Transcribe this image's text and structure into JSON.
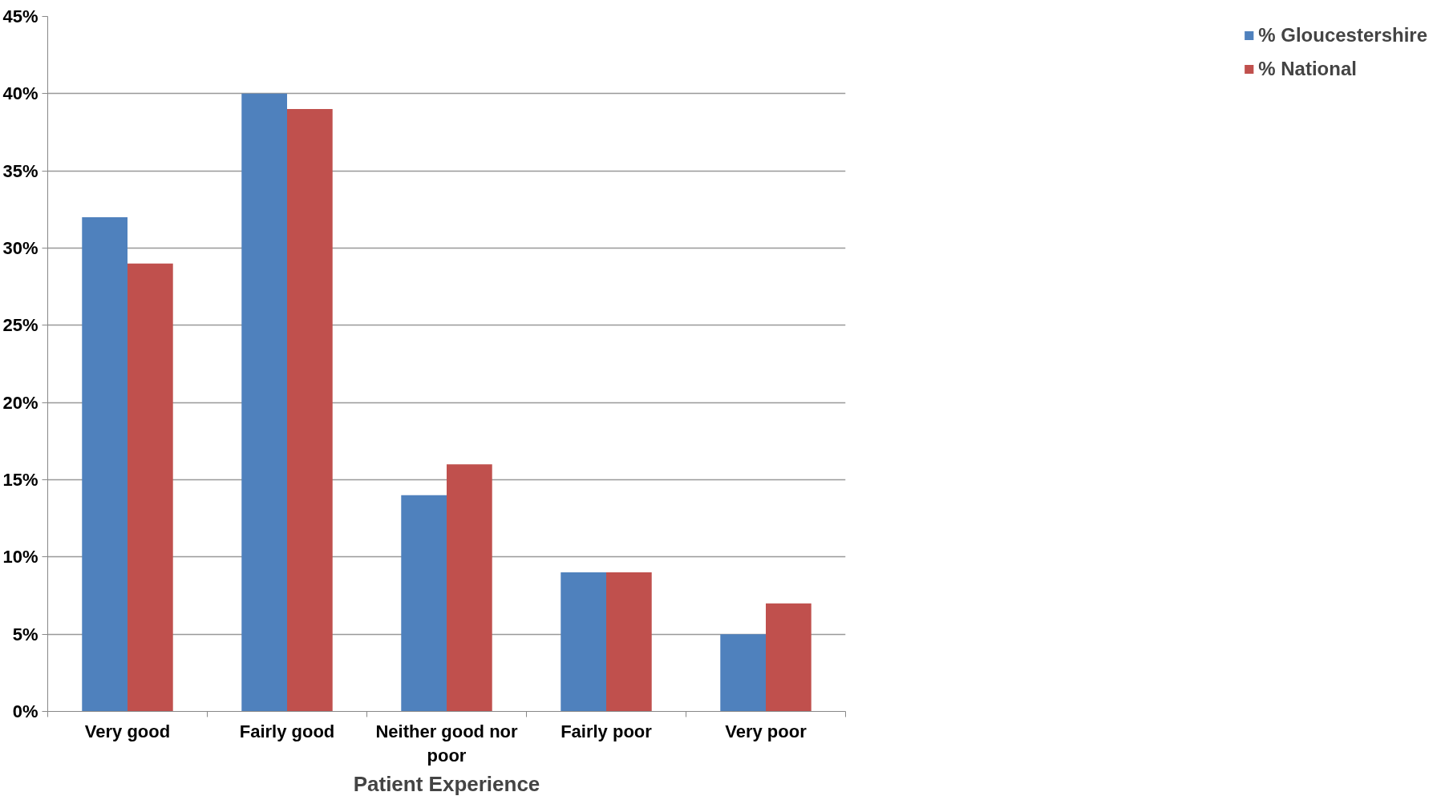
{
  "chart_data": {
    "type": "bar",
    "xlabel": "Patient Experience",
    "categories": [
      "Very good",
      "Fairly good",
      "Neither good nor poor",
      "Fairly poor",
      "Very poor"
    ],
    "series": [
      {
        "name": "% Gloucestershire",
        "color": "#4f81bd",
        "values": [
          32,
          40,
          14,
          9,
          5
        ]
      },
      {
        "name": "% National",
        "color": "#c0504d",
        "values": [
          29,
          39,
          16,
          9,
          7
        ]
      }
    ],
    "ylim": [
      0,
      45
    ],
    "yticks": [
      {
        "value": 0,
        "label": "0%"
      },
      {
        "value": 5,
        "label": "5%"
      },
      {
        "value": 10,
        "label": "10%"
      },
      {
        "value": 15,
        "label": "15%"
      },
      {
        "value": 20,
        "label": "20%"
      },
      {
        "value": 25,
        "label": "25%"
      },
      {
        "value": 30,
        "label": "30%"
      },
      {
        "value": 35,
        "label": "35%"
      },
      {
        "value": 40,
        "label": "40%"
      },
      {
        "value": 45,
        "label": "45%"
      }
    ],
    "grid": "y",
    "legend": "right"
  }
}
